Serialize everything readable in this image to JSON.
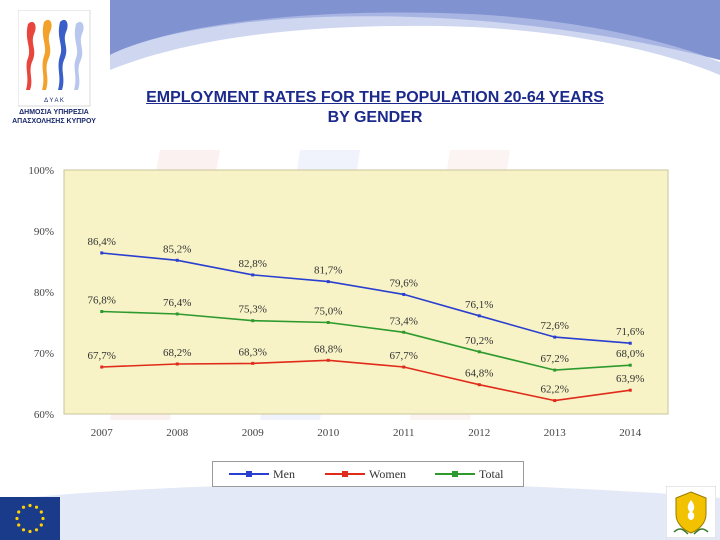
{
  "header": {
    "title_line1": "EMPLOYMENT RATES FOR THE POPULATION 20-64 YEARS",
    "title_line2": "BY GENDER"
  },
  "logo": {
    "caption_line1": "ΔΗΜΟΣΙΑ ΥΠΗΡΕΣΙΑ",
    "caption_line2": "ΑΠΑΣΧΟΛΗΣΗΣ ΚΥΠΡΟΥ"
  },
  "colors": {
    "plot_bg": "#f7f3c6",
    "men": "#2a3fd0",
    "women": "#e02a1a",
    "total": "#2e9a2e",
    "title": "#1c2a8c",
    "eu_blue": "#1a3a8a",
    "eu_star": "#ffd200"
  },
  "chart_data": {
    "type": "line",
    "title": "EMPLOYMENT RATES FOR THE POPULATION 20-64 YEARS BY GENDER",
    "xlabel": "",
    "ylabel": "",
    "categories": [
      "2007",
      "2008",
      "2009",
      "2010",
      "2011",
      "2012",
      "2013",
      "2014"
    ],
    "ylim": [
      60,
      100
    ],
    "yticks": [
      "60%",
      "70%",
      "80%",
      "90%",
      "100%"
    ],
    "ytick_values": [
      60,
      70,
      80,
      90,
      100
    ],
    "grid": false,
    "legend_position": "bottom",
    "series": [
      {
        "name": "Men",
        "values": [
          86.4,
          85.2,
          82.8,
          81.7,
          79.6,
          76.1,
          72.6,
          71.6
        ],
        "labels": [
          "86,4%",
          "85,2%",
          "82,8%",
          "81,7%",
          "79,6%",
          "76,1%",
          "72,6%",
          "71,6%"
        ]
      },
      {
        "name": "Women",
        "values": [
          67.7,
          68.2,
          68.3,
          68.8,
          67.7,
          64.8,
          62.2,
          63.9
        ],
        "labels": [
          "67,7%",
          "68,2%",
          "68,3%",
          "68,8%",
          "67,7%",
          "64,8%",
          "62,2%",
          "63,9%"
        ]
      },
      {
        "name": "Total",
        "values": [
          76.8,
          76.4,
          75.3,
          75.0,
          73.4,
          70.2,
          67.2,
          68.0
        ],
        "labels": [
          "76,8%",
          "76,4%",
          "75,3%",
          "75,0%",
          "73,4%",
          "70,2%",
          "67,2%",
          "68,0%"
        ]
      }
    ]
  }
}
